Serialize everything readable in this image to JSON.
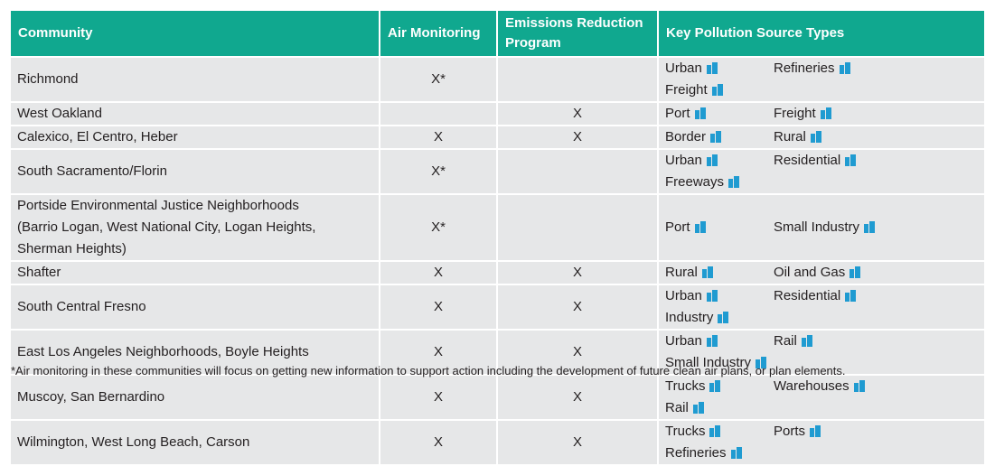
{
  "header": [
    "Community",
    "Air Monitoring",
    "Emissions Reduction\nProgram",
    "Key Pollution Source Types"
  ],
  "rows": [
    {
      "community": "Richmond",
      "air": "X*",
      "emissions": null,
      "sources": [
        "Urban",
        "Refineries",
        "Freight"
      ]
    },
    {
      "community": "West Oakland",
      "air": null,
      "emissions": "X",
      "sources": [
        "Port",
        "Freight"
      ]
    },
    {
      "community": "Calexico, El Centro, Heber",
      "air": "X",
      "emissions": "X",
      "sources": [
        "Border",
        "Rural"
      ]
    },
    {
      "community": "South Sacramento/Florin",
      "air": "X*",
      "emissions": null,
      "sources": [
        "Urban",
        "Residential",
        "Freeways"
      ]
    },
    {
      "community": "Portside Environmental Justice Neighborhoods\n(Barrio Logan, West National City, Logan Heights,\nSherman Heights)",
      "air": "X*",
      "emissions": null,
      "sources": [
        "Port",
        "Small Industry"
      ]
    },
    {
      "community": "Shafter",
      "air": "X",
      "emissions": "X",
      "sources": [
        "Rural",
        "Oil and Gas"
      ]
    },
    {
      "community": "South Central Fresno",
      "air": "X",
      "emissions": "X",
      "sources": [
        "Urban",
        "Residential",
        "Industry"
      ]
    },
    {
      "community": "East Los Angeles Neighborhoods, Boyle Heights",
      "air": "X",
      "emissions": "X",
      "sources": [
        "Urban",
        "Rail",
        "Small Industry"
      ]
    },
    {
      "community": "Muscoy, San Bernardino",
      "air": "X",
      "emissions": "X",
      "sources": [
        "Trucks",
        "Warehouses",
        "Rail"
      ]
    },
    {
      "community": "Wilmington, West Long Beach, Carson",
      "air": "X",
      "emissions": "X",
      "sources": [
        "Trucks",
        "Ports",
        "Refineries"
      ]
    }
  ],
  "footnote": "*Air monitoring in these communities will focus on getting new information to support action including the development of future clean air plans, or plan elements."
}
